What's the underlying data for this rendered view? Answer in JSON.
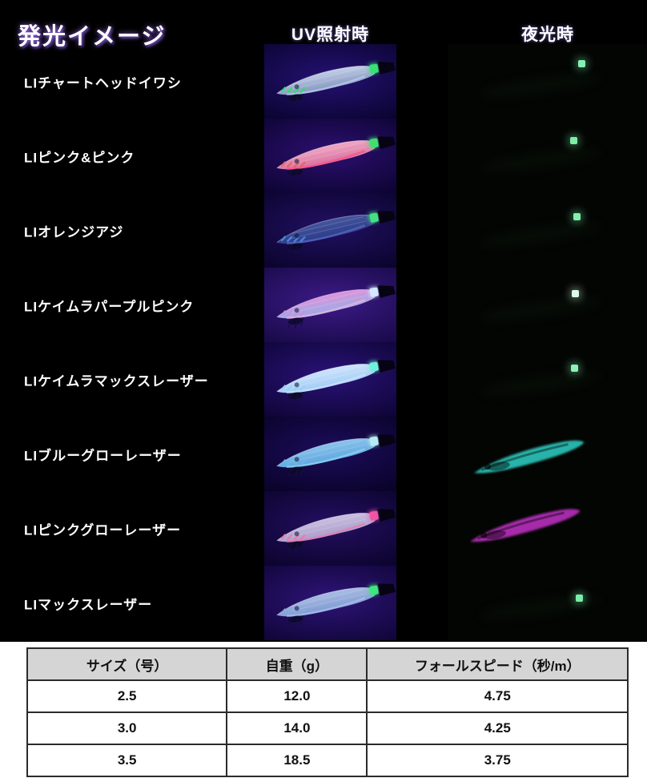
{
  "header": {
    "title": "発光イメージ",
    "uv_col": "UV照射時",
    "night_col": "夜光時"
  },
  "rows": [
    {
      "label": "LIチャートヘッドイワシ",
      "uv": {
        "bg_mid": "#251173",
        "bg_edge": "#0a0430",
        "body_top": "#c2cfe6",
        "body": "#8395c2",
        "accent": "#b9cce8",
        "nose": "#2ee06a",
        "dot": "#36e272"
      },
      "night": {
        "kind": "dot",
        "color": "#84f2b2",
        "x": 0.655,
        "y": 0.22
      }
    },
    {
      "label": "LIピンク&ピンク",
      "uv": {
        "bg_mid": "#2d0f70",
        "bg_edge": "#0c0432",
        "body_top": "#f0a8c4",
        "body": "#d8719f",
        "accent": "#ff4f85",
        "nose": "#e8635a",
        "dot": "#3fe070"
      },
      "night": {
        "kind": "dot",
        "color": "#7eeea8",
        "x": 0.613,
        "y": 0.25
      }
    },
    {
      "label": "LIオレンジアジ",
      "uv": {
        "bg_mid": "#221063",
        "bg_edge": "#0a042c",
        "body_top": "#46569e",
        "body": "#2b3a88",
        "accent": "#5868c4",
        "nose": "#4a8ae0",
        "dot": "#42e282"
      },
      "night": {
        "kind": "dot",
        "color": "#80f0ac",
        "x": 0.63,
        "y": 0.27
      }
    },
    {
      "label": "LIケイムラパープルピンク",
      "uv": {
        "bg_mid": "#3d1a88",
        "bg_edge": "#180a48",
        "body_top": "#e092da",
        "body": "#96aee6",
        "accent": "#f0b0e0",
        "nose": "#c890e0",
        "dot": "#d4e8ff"
      },
      "night": {
        "kind": "dot",
        "color": "#dcfbe8",
        "x": 0.62,
        "y": 0.3
      }
    },
    {
      "label": "LIケイムラマックスレーザー",
      "uv": {
        "bg_mid": "#2a1278",
        "bg_edge": "#0e0536",
        "body_top": "#cfe4fb",
        "body": "#a2ccf6",
        "accent": "#c8e4ff",
        "nose": "#9ad0f0",
        "dot": "#70f0da"
      },
      "night": {
        "kind": "dot",
        "color": "#8cf2b6",
        "x": 0.617,
        "y": 0.3
      }
    },
    {
      "label": "LIブルーグローレーザー",
      "uv": {
        "bg_mid": "#1c0c5c",
        "bg_edge": "#090328",
        "body_top": "#8cc4ec",
        "body": "#5ea6e0",
        "accent": "#8cd4f0",
        "nose": "#6ab8e8",
        "dot": "#b8ecf4"
      },
      "night": {
        "kind": "lure",
        "color": "#2ed2c6",
        "x": 0.4,
        "y": 0.52
      }
    },
    {
      "label": "LIピンクグローレーザー",
      "uv": {
        "bg_mid": "#240e62",
        "bg_edge": "#0b042c",
        "body_top": "#cabfe0",
        "body": "#ab9ecb",
        "accent": "#e87aae",
        "nose": "#e87aae",
        "dot": "#f054a2"
      },
      "night": {
        "kind": "lure",
        "color": "#c233c8",
        "x": 0.38,
        "y": 0.44
      }
    },
    {
      "label": "LIマックスレーザー",
      "uv": {
        "bg_mid": "#2e1478",
        "bg_edge": "#100538",
        "body_top": "#aabde4",
        "body": "#7e9ad2",
        "accent": "#a8c0ec",
        "nose": "#88a8dc",
        "dot": "#3ee67c"
      },
      "night": {
        "kind": "dot",
        "color": "#78eea6",
        "x": 0.64,
        "y": 0.39
      }
    }
  ],
  "spec_table": {
    "headers": [
      "サイズ（号）",
      "自重（g）",
      "フォールスピード（秒/m）"
    ],
    "rows": [
      [
        "2.5",
        "12.0",
        "4.75"
      ],
      [
        "3.0",
        "14.0",
        "4.25"
      ],
      [
        "3.5",
        "18.5",
        "3.75"
      ]
    ]
  }
}
